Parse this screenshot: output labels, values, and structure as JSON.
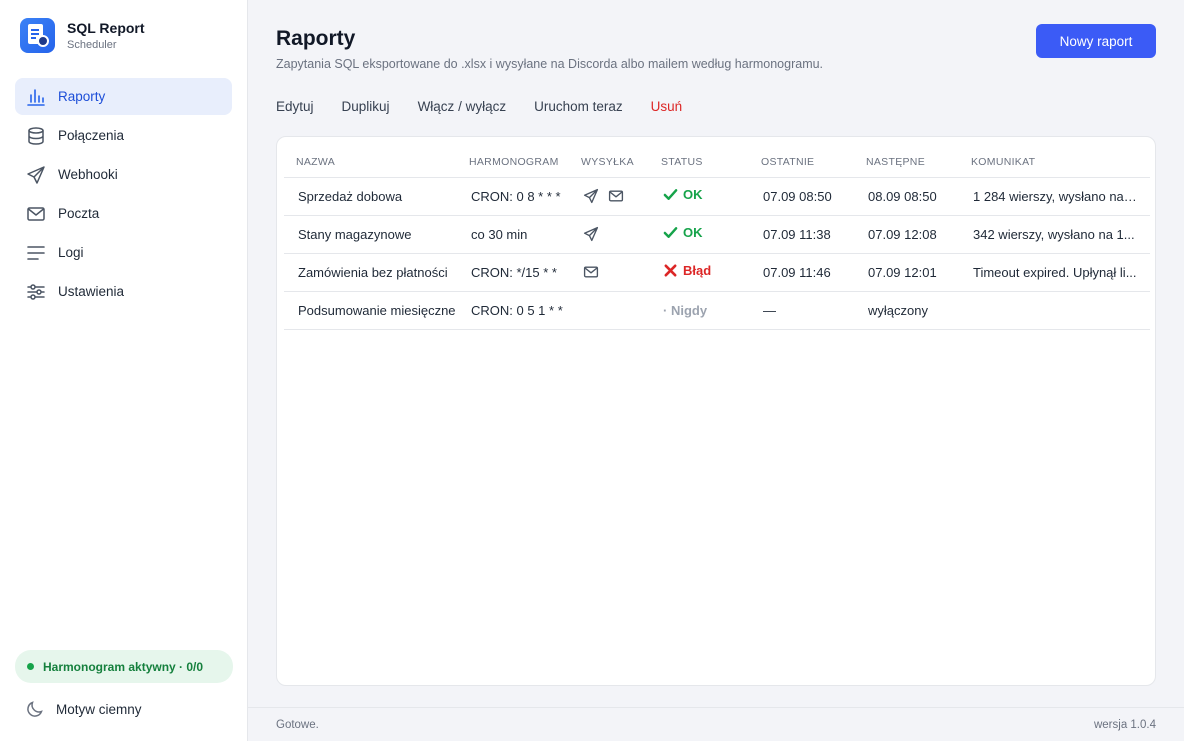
{
  "app": {
    "title": "SQL Report",
    "subtitle": "Scheduler"
  },
  "nav": [
    {
      "label": "Raporty",
      "icon": "bar-chart-icon",
      "active": true
    },
    {
      "label": "Połączenia",
      "icon": "database-icon"
    },
    {
      "label": "Webhooki",
      "icon": "send-icon"
    },
    {
      "label": "Poczta",
      "icon": "mail-icon"
    },
    {
      "label": "Logi",
      "icon": "list-lines-icon"
    },
    {
      "label": "Ustawienia",
      "icon": "sliders-icon"
    }
  ],
  "scheduler_status": "Harmonogram aktywny · 0/0",
  "theme_toggle": "Motyw ciemny",
  "page": {
    "title": "Raporty",
    "subtitle": "Zapytania SQL eksportowane do .xlsx i wysyłane na Discorda albo mailem według harmonogramu.",
    "new_button": "Nowy raport"
  },
  "toolbar": {
    "edit": "Edytuj",
    "duplicate": "Duplikuj",
    "toggle": "Włącz / wyłącz",
    "run": "Uruchom teraz",
    "delete": "Usuń"
  },
  "table": {
    "headers": [
      "NAZWA",
      "HARMONOGRAM",
      "WYSYŁKA",
      "STATUS",
      "OSTATNIE",
      "NASTĘPNE",
      "KOMUNIKAT"
    ],
    "rows": [
      {
        "name": "Sprzedaż dobowa",
        "schedule": "CRON: 0 8 * * *",
        "send": [
          "send-icon",
          "mail-icon"
        ],
        "status": "OK",
        "status_type": "ok",
        "last": "07.09 08:50",
        "next": "08.09 08:50",
        "message": "1 284 wierszy, wysłano na 2..."
      },
      {
        "name": "Stany magazynowe",
        "schedule": "co 30 min",
        "send": [
          "send-icon"
        ],
        "status": "OK",
        "status_type": "ok",
        "last": "07.09 11:38",
        "next": "07.09 12:08",
        "message": "342 wierszy, wysłano na 1..."
      },
      {
        "name": "Zamówienia bez płatności",
        "schedule": "CRON: */15 * *",
        "send": [
          "mail-icon"
        ],
        "status": "Błąd",
        "status_type": "err",
        "last": "07.09 11:46",
        "next": "07.09 12:01",
        "message": "Timeout expired. Upłynął li..."
      },
      {
        "name": "Podsumowanie miesięczne",
        "schedule": "CRON: 0 5 1 * *",
        "send": [],
        "status": "· Nigdy",
        "status_type": "never",
        "last": "—",
        "next": "wyłączony",
        "message": ""
      }
    ]
  },
  "footer": {
    "status": "Gotowe.",
    "version": "wersja 1.0.4"
  },
  "colors": {
    "accent": "#3b5bf6",
    "ok": "#16a34a",
    "error": "#dc2626",
    "active_nav_bg": "#e8eefc"
  }
}
